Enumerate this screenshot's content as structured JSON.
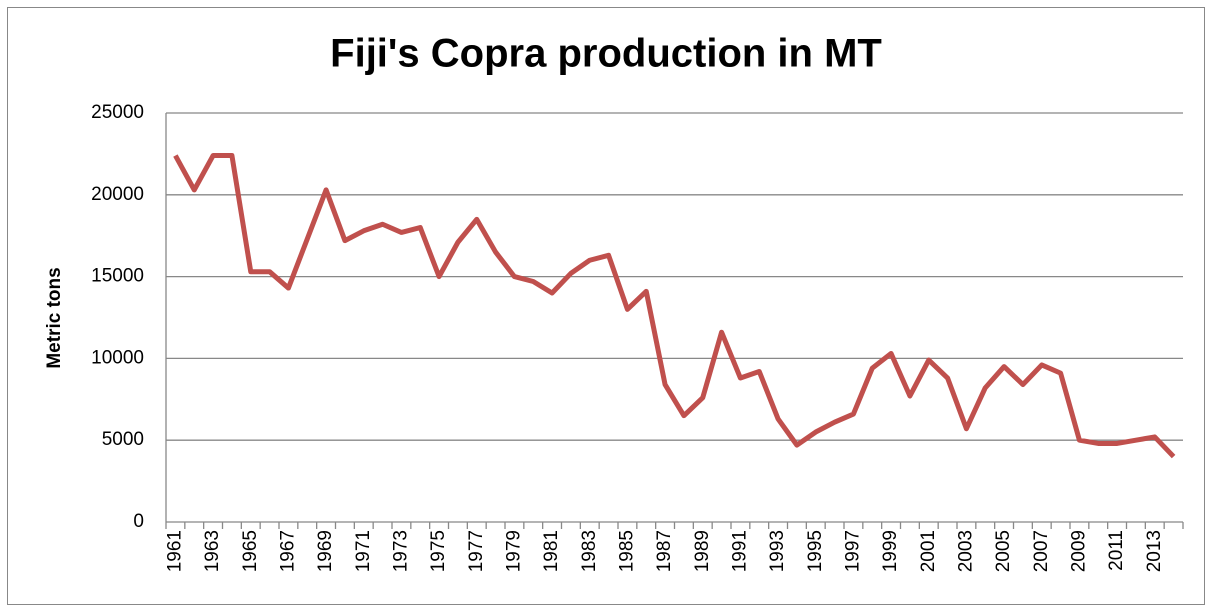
{
  "chart_data": {
    "type": "line",
    "title": "Fiji's Copra production in MT",
    "y_label": "Metric tons",
    "categories": [
      "1961",
      null,
      "1963",
      null,
      "1965",
      null,
      "1967",
      null,
      "1969",
      null,
      "1971",
      null,
      "1973",
      null,
      "1975",
      null,
      "1977",
      null,
      "1979",
      null,
      "1981",
      null,
      "1983",
      null,
      "1985",
      null,
      "1987",
      null,
      "1989",
      null,
      "1991",
      null,
      "1993",
      null,
      "1995",
      null,
      "1997",
      null,
      "1999",
      null,
      "2001",
      null,
      "2003",
      null,
      "2005",
      null,
      "2007",
      null,
      "2009",
      null,
      "2011",
      null,
      "2013",
      null
    ],
    "values": [
      22400,
      20300,
      22400,
      22400,
      15300,
      15300,
      14300,
      17300,
      20300,
      17200,
      17800,
      18200,
      17700,
      18000,
      15000,
      17100,
      18500,
      16500,
      15000,
      14700,
      14000,
      15200,
      16000,
      16300,
      13000,
      14100,
      8400,
      6500,
      7600,
      11600,
      8800,
      9200,
      6300,
      4700,
      5500,
      6100,
      6600,
      9400,
      10300,
      7700,
      9900,
      8800,
      5700,
      8200,
      9500,
      8400,
      9600,
      9100,
      5000,
      4800,
      4800,
      5000,
      5200,
      4000
    ],
    "color": "#c0504d",
    "ylim": [
      0,
      25000
    ],
    "yticks": [
      0,
      5000,
      10000,
      15000,
      20000,
      25000
    ],
    "grid": true
  }
}
